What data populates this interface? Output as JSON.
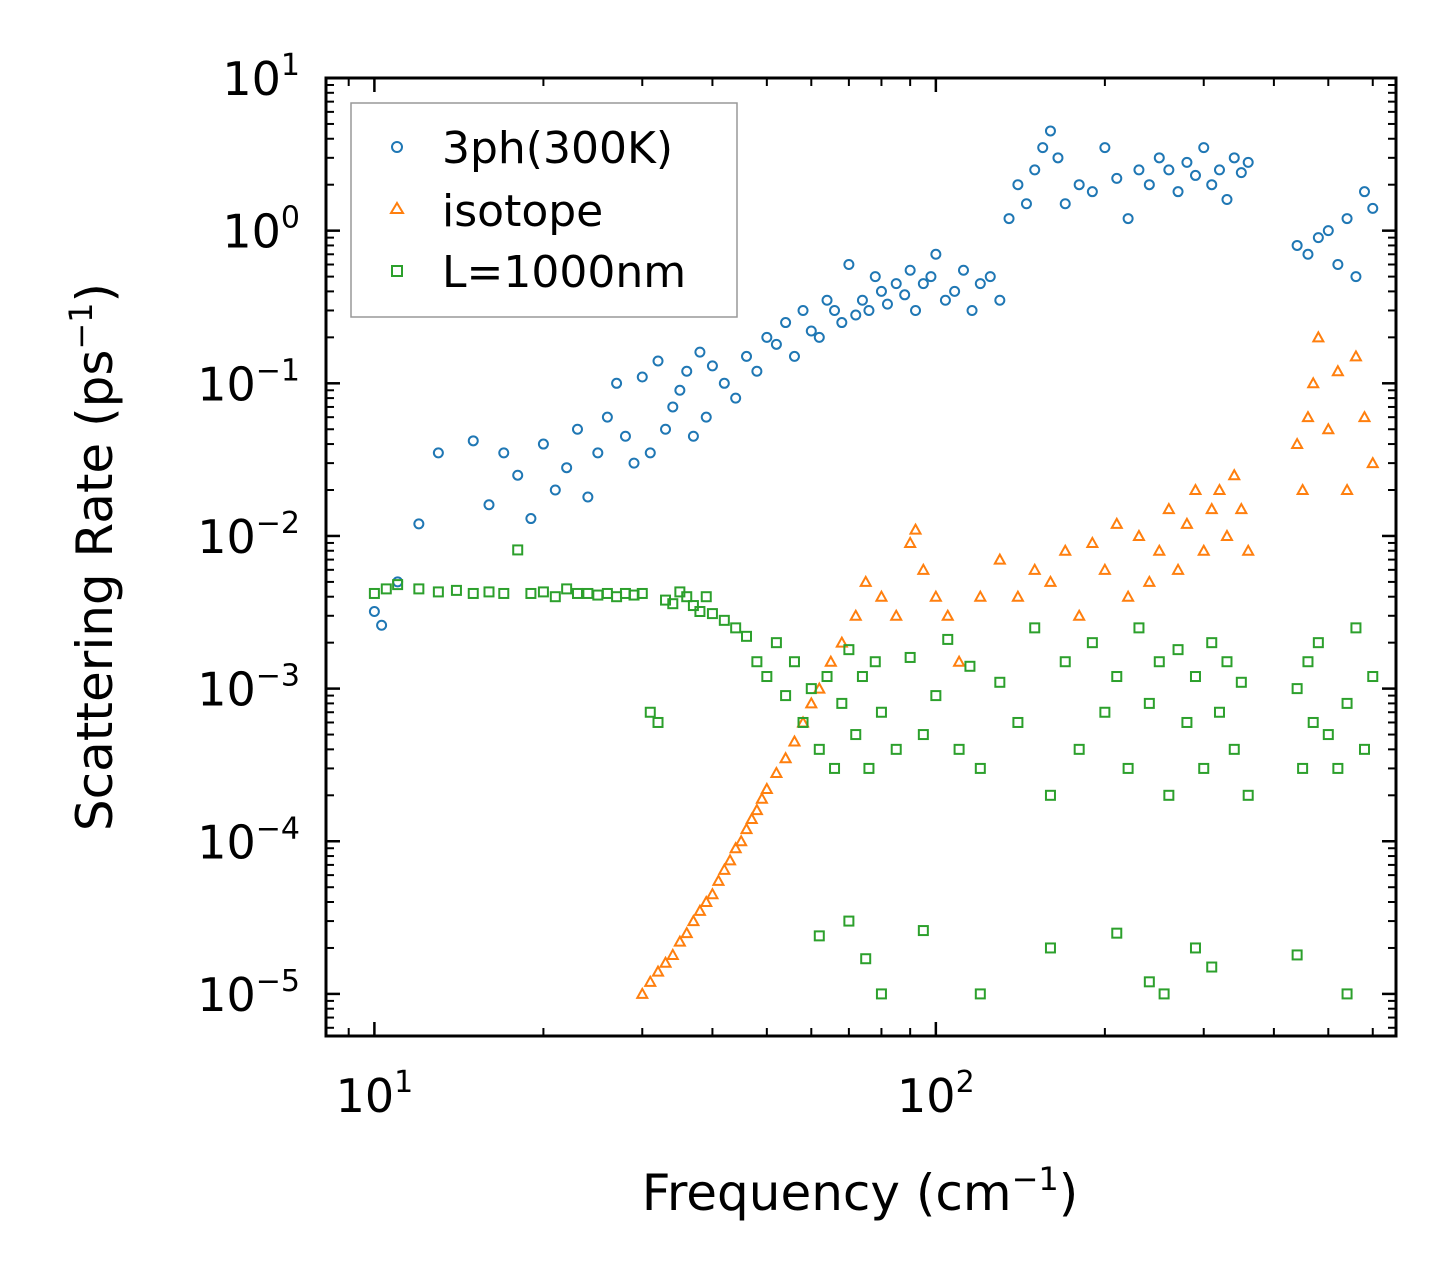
{
  "chart_data": {
    "type": "scatter",
    "xscale": "log",
    "yscale": "log",
    "xlim": [
      8.2,
      660
    ],
    "ylim": [
      5.3e-06,
      10
    ],
    "xlabel": "Frequency (cm",
    "xlabel_sup": "−1",
    "xlabel_tail": ")",
    "ylabel": "Scattering Rate (ps",
    "ylabel_sup": "−1",
    "ylabel_tail": ")",
    "x_ticks": [
      {
        "value": 10,
        "base": "10",
        "exp": "1"
      },
      {
        "value": 100,
        "base": "10",
        "exp": "2"
      }
    ],
    "y_ticks": [
      {
        "value": 10,
        "base": "10",
        "exp": "1"
      },
      {
        "value": 1,
        "base": "10",
        "exp": "0"
      },
      {
        "value": 0.1,
        "base": "10",
        "exp": "−1"
      },
      {
        "value": 0.01,
        "base": "10",
        "exp": "−2"
      },
      {
        "value": 0.001,
        "base": "10",
        "exp": "−3"
      },
      {
        "value": 0.0001,
        "base": "10",
        "exp": "−4"
      },
      {
        "value": 1e-05,
        "base": "10",
        "exp": "−5"
      }
    ],
    "legend_position": "top-left",
    "series": [
      {
        "name": "3ph(300K)",
        "marker": "circle",
        "color": "#1f77b4",
        "x": [
          10,
          10.3,
          11,
          12,
          13,
          15,
          16,
          17,
          18,
          19,
          20,
          21,
          22,
          23,
          24,
          25,
          26,
          27,
          28,
          29,
          30,
          31,
          32,
          33,
          34,
          35,
          36,
          37,
          38,
          39,
          40,
          42,
          44,
          46,
          48,
          50,
          52,
          54,
          56,
          58,
          60,
          62,
          64,
          66,
          68,
          70,
          72,
          74,
          76,
          78,
          80,
          82,
          85,
          88,
          90,
          92,
          95,
          98,
          100,
          104,
          108,
          112,
          116,
          120,
          125,
          130,
          135,
          140,
          145,
          150,
          155,
          160,
          165,
          170,
          180,
          190,
          200,
          210,
          220,
          230,
          240,
          250,
          260,
          270,
          280,
          290,
          300,
          310,
          320,
          330,
          340,
          350,
          360,
          440,
          460,
          480,
          500,
          520,
          540,
          560,
          580,
          600
        ],
        "y": [
          0.0032,
          0.0026,
          0.005,
          0.012,
          0.035,
          0.042,
          0.016,
          0.035,
          0.025,
          0.013,
          0.04,
          0.02,
          0.028,
          0.05,
          0.018,
          0.035,
          0.06,
          0.1,
          0.045,
          0.03,
          0.11,
          0.035,
          0.14,
          0.05,
          0.07,
          0.09,
          0.12,
          0.045,
          0.16,
          0.06,
          0.13,
          0.1,
          0.08,
          0.15,
          0.12,
          0.2,
          0.18,
          0.25,
          0.15,
          0.3,
          0.22,
          0.2,
          0.35,
          0.3,
          0.25,
          0.6,
          0.28,
          0.35,
          0.3,
          0.5,
          0.4,
          0.33,
          0.45,
          0.38,
          0.55,
          0.3,
          0.45,
          0.5,
          0.7,
          0.35,
          0.4,
          0.55,
          0.3,
          0.45,
          0.5,
          0.35,
          1.2,
          2.0,
          1.5,
          2.5,
          3.5,
          4.5,
          3.0,
          1.5,
          2.0,
          1.8,
          3.5,
          2.2,
          1.2,
          2.5,
          2.0,
          3.0,
          2.5,
          1.8,
          2.8,
          2.3,
          3.5,
          2.0,
          2.5,
          1.6,
          3.0,
          2.4,
          2.8,
          0.8,
          0.7,
          0.9,
          1.0,
          0.6,
          1.2,
          0.5,
          1.8,
          1.4
        ]
      },
      {
        "name": "isotope",
        "marker": "triangle",
        "color": "#ff7f0e",
        "x": [
          30,
          31,
          32,
          33,
          34,
          35,
          36,
          37,
          38,
          39,
          40,
          41,
          42,
          43,
          44,
          45,
          46,
          47,
          48,
          49,
          50,
          52,
          54,
          56,
          58,
          60,
          62,
          65,
          68,
          72,
          75,
          80,
          85,
          90,
          92,
          95,
          100,
          105,
          110,
          120,
          130,
          140,
          150,
          160,
          170,
          180,
          190,
          200,
          210,
          220,
          230,
          240,
          250,
          260,
          270,
          280,
          290,
          300,
          310,
          320,
          330,
          340,
          350,
          360,
          440,
          450,
          460,
          470,
          480,
          500,
          520,
          540,
          560,
          580,
          600
        ],
        "y": [
          1e-05,
          1.2e-05,
          1.4e-05,
          1.6e-05,
          1.8e-05,
          2.2e-05,
          2.5e-05,
          3e-05,
          3.5e-05,
          4e-05,
          4.5e-05,
          5.5e-05,
          6.5e-05,
          7.5e-05,
          9e-05,
          0.0001,
          0.00012,
          0.00014,
          0.00016,
          0.00019,
          0.00022,
          0.00028,
          0.00035,
          0.00045,
          0.0006,
          0.0008,
          0.001,
          0.0015,
          0.002,
          0.003,
          0.005,
          0.004,
          0.003,
          0.009,
          0.011,
          0.006,
          0.004,
          0.003,
          0.0015,
          0.004,
          0.007,
          0.004,
          0.006,
          0.005,
          0.008,
          0.003,
          0.009,
          0.006,
          0.012,
          0.004,
          0.01,
          0.005,
          0.008,
          0.015,
          0.006,
          0.012,
          0.02,
          0.008,
          0.015,
          0.02,
          0.01,
          0.025,
          0.015,
          0.008,
          0.04,
          0.02,
          0.06,
          0.1,
          0.2,
          0.05,
          0.12,
          0.02,
          0.15,
          0.06,
          0.03
        ]
      },
      {
        "name": "L=1000nm",
        "marker": "square",
        "color": "#2ca02c",
        "x": [
          10,
          10.5,
          11,
          12,
          13,
          14,
          15,
          16,
          17,
          18,
          19,
          20,
          21,
          22,
          23,
          24,
          25,
          26,
          27,
          28,
          29,
          30,
          31,
          32,
          33,
          34,
          35,
          36,
          37,
          38,
          39,
          40,
          42,
          44,
          46,
          48,
          50,
          52,
          54,
          56,
          58,
          60,
          62,
          64,
          66,
          68,
          70,
          72,
          74,
          76,
          78,
          80,
          85,
          90,
          95,
          100,
          105,
          110,
          115,
          120,
          130,
          140,
          150,
          160,
          170,
          180,
          190,
          200,
          210,
          220,
          230,
          240,
          250,
          260,
          270,
          280,
          290,
          300,
          310,
          320,
          330,
          340,
          350,
          360,
          440,
          450,
          460,
          470,
          480,
          500,
          520,
          540,
          560,
          580,
          600,
          62,
          70,
          75,
          80,
          95,
          120,
          160,
          210,
          240,
          255,
          290,
          310,
          440,
          540
        ],
        "y": [
          0.0042,
          0.0045,
          0.0048,
          0.0045,
          0.0043,
          0.0044,
          0.0042,
          0.0043,
          0.0042,
          0.0081,
          0.0042,
          0.0043,
          0.004,
          0.0045,
          0.0042,
          0.0042,
          0.0041,
          0.0042,
          0.004,
          0.0042,
          0.0041,
          0.0042,
          0.0007,
          0.0006,
          0.0038,
          0.0036,
          0.0043,
          0.004,
          0.0035,
          0.0032,
          0.004,
          0.0031,
          0.0028,
          0.0025,
          0.0022,
          0.0015,
          0.0012,
          0.002,
          0.0009,
          0.0015,
          0.0006,
          0.001,
          0.0004,
          0.0012,
          0.0003,
          0.0008,
          0.0018,
          0.0005,
          0.0012,
          0.0003,
          0.0015,
          0.0007,
          0.0004,
          0.0016,
          0.0005,
          0.0009,
          0.0021,
          0.0004,
          0.0014,
          0.0003,
          0.0011,
          0.0006,
          0.0025,
          0.0002,
          0.0015,
          0.0004,
          0.002,
          0.0007,
          0.0012,
          0.0003,
          0.0025,
          0.0008,
          0.0015,
          0.0002,
          0.0018,
          0.0006,
          0.0012,
          0.0003,
          0.002,
          0.0007,
          0.0015,
          0.0004,
          0.0011,
          0.0002,
          0.001,
          0.0003,
          0.0015,
          0.0006,
          0.002,
          0.0005,
          0.0003,
          0.0008,
          0.0025,
          0.0004,
          0.0012,
          2.4e-05,
          3e-05,
          1.7e-05,
          1e-05,
          2.6e-05,
          1e-05,
          2e-05,
          2.5e-05,
          1.2e-05,
          1e-05,
          2e-05,
          1.5e-05,
          1.8e-05,
          1e-05
        ]
      }
    ]
  }
}
